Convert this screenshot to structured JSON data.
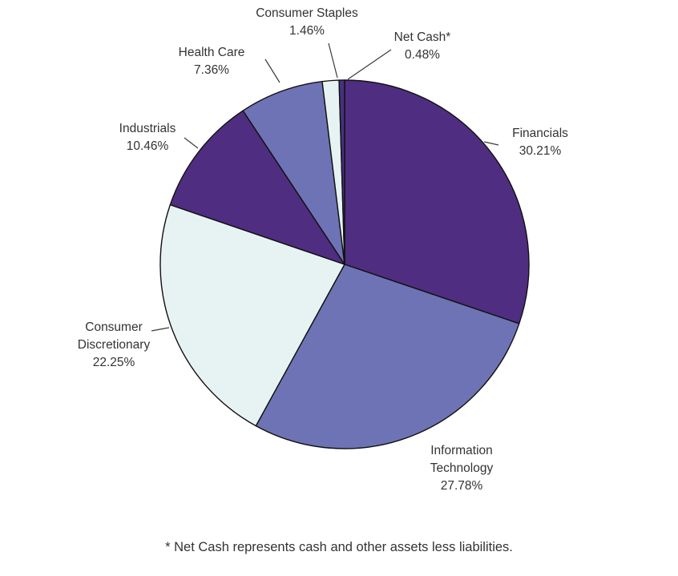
{
  "chart_data": {
    "type": "pie",
    "title": "",
    "start_angle_deg": -90,
    "direction": "clockwise",
    "legend_position": "none",
    "slices": [
      {
        "label": "Financials",
        "value": 30.21,
        "display": "30.21%",
        "color": "#4F2D80"
      },
      {
        "label": "Information Technology",
        "value": 27.78,
        "display": "27.78%",
        "color": "#6D73B5"
      },
      {
        "label": "Consumer Discretionary",
        "value": 22.25,
        "display": "22.25%",
        "color": "#E7F3F2"
      },
      {
        "label": "Industrials",
        "value": 10.46,
        "display": "10.46%",
        "color": "#4F2D80"
      },
      {
        "label": "Health Care",
        "value": 7.36,
        "display": "7.36%",
        "color": "#6D73B5"
      },
      {
        "label": "Consumer Staples",
        "value": 1.46,
        "display": "1.46%",
        "color": "#E7F3F2"
      },
      {
        "label": "Net Cash*",
        "value": 0.48,
        "display": "0.48%",
        "color": "#46307F"
      }
    ],
    "footnote": "* Net Cash represents cash and other assets less liabilities.",
    "colors": {
      "outline": "#111111",
      "text": "#333333"
    }
  }
}
